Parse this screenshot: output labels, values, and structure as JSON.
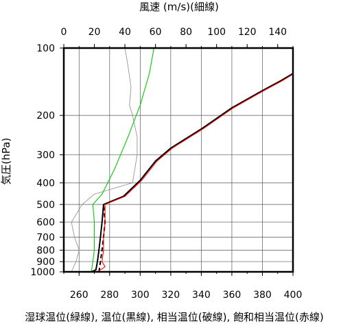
{
  "chart_data": {
    "type": "line",
    "title": "",
    "top_axis": {
      "label": "風速 (m/s)(細線)",
      "range": [
        0,
        150
      ],
      "ticks": [
        "0",
        "20",
        "40",
        "60",
        "80",
        "100",
        "120",
        "140"
      ]
    },
    "x_axis": {
      "label": "湿球温位(緑線), 温位(黒線), 相当温位(破線), 飽和相当温位(赤線)",
      "range": [
        250,
        400
      ],
      "ticks": [
        "260",
        "280",
        "300",
        "320",
        "340",
        "360",
        "380",
        "400"
      ]
    },
    "y_axis": {
      "label": "気圧(hPa)",
      "scale": "log",
      "range": [
        1000,
        100
      ],
      "ticks": [
        "100",
        "200",
        "300",
        "400",
        "500",
        "600",
        "700",
        "800",
        "900",
        "1000"
      ]
    },
    "grid": true,
    "series": [
      {
        "name": "湿球温位",
        "color": "#00cc00",
        "axis": "bottom",
        "points": [
          [
            268,
            1000
          ],
          [
            269,
            900
          ],
          [
            270,
            800
          ],
          [
            270,
            700
          ],
          [
            270,
            600
          ],
          [
            269,
            500
          ],
          [
            275,
            450
          ],
          [
            283,
            350
          ],
          [
            292,
            250
          ],
          [
            300,
            180
          ],
          [
            306,
            130
          ],
          [
            309,
            100
          ]
        ]
      },
      {
        "name": "温位",
        "color": "#000000",
        "axis": "bottom",
        "points": [
          [
            268,
            1000
          ],
          [
            271,
            980
          ],
          [
            272,
            900
          ],
          [
            273,
            800
          ],
          [
            274,
            700
          ],
          [
            275,
            600
          ],
          [
            276,
            500
          ],
          [
            289,
            460
          ],
          [
            300,
            390
          ],
          [
            310,
            320
          ],
          [
            320,
            280
          ],
          [
            340,
            230
          ],
          [
            360,
            185
          ],
          [
            380,
            155
          ],
          [
            392,
            140
          ],
          [
            400,
            130
          ]
        ]
      },
      {
        "name": "相当温位",
        "color": "#000000",
        "dashed": true,
        "axis": "bottom",
        "points": [
          [
            273,
            1000
          ],
          [
            274,
            900
          ],
          [
            275,
            800
          ],
          [
            276,
            700
          ],
          [
            277,
            600
          ],
          [
            276,
            500
          ]
        ]
      },
      {
        "name": "飽和相当温位",
        "color": "#ff0000",
        "axis": "bottom",
        "points": [
          [
            272,
            1000
          ],
          [
            277,
            950
          ],
          [
            275,
            900
          ],
          [
            276,
            800
          ],
          [
            276,
            700
          ],
          [
            277,
            600
          ],
          [
            277,
            500
          ],
          [
            290,
            460
          ],
          [
            301,
            390
          ],
          [
            311,
            320
          ],
          [
            321,
            280
          ],
          [
            341,
            230
          ],
          [
            361,
            185
          ],
          [
            381,
            155
          ],
          [
            393,
            140
          ],
          [
            400,
            131
          ]
        ]
      },
      {
        "name": "風速",
        "color": "#888888",
        "axis": "top",
        "points": [
          [
            5,
            1000
          ],
          [
            8,
            900
          ],
          [
            10,
            800
          ],
          [
            7,
            700
          ],
          [
            5,
            600
          ],
          [
            12,
            500
          ],
          [
            20,
            450
          ],
          [
            45,
            400
          ],
          [
            48,
            300
          ],
          [
            48,
            250
          ],
          [
            45,
            200
          ],
          [
            43,
            180
          ],
          [
            44,
            150
          ],
          [
            42,
            120
          ],
          [
            40,
            100
          ]
        ]
      }
    ]
  }
}
